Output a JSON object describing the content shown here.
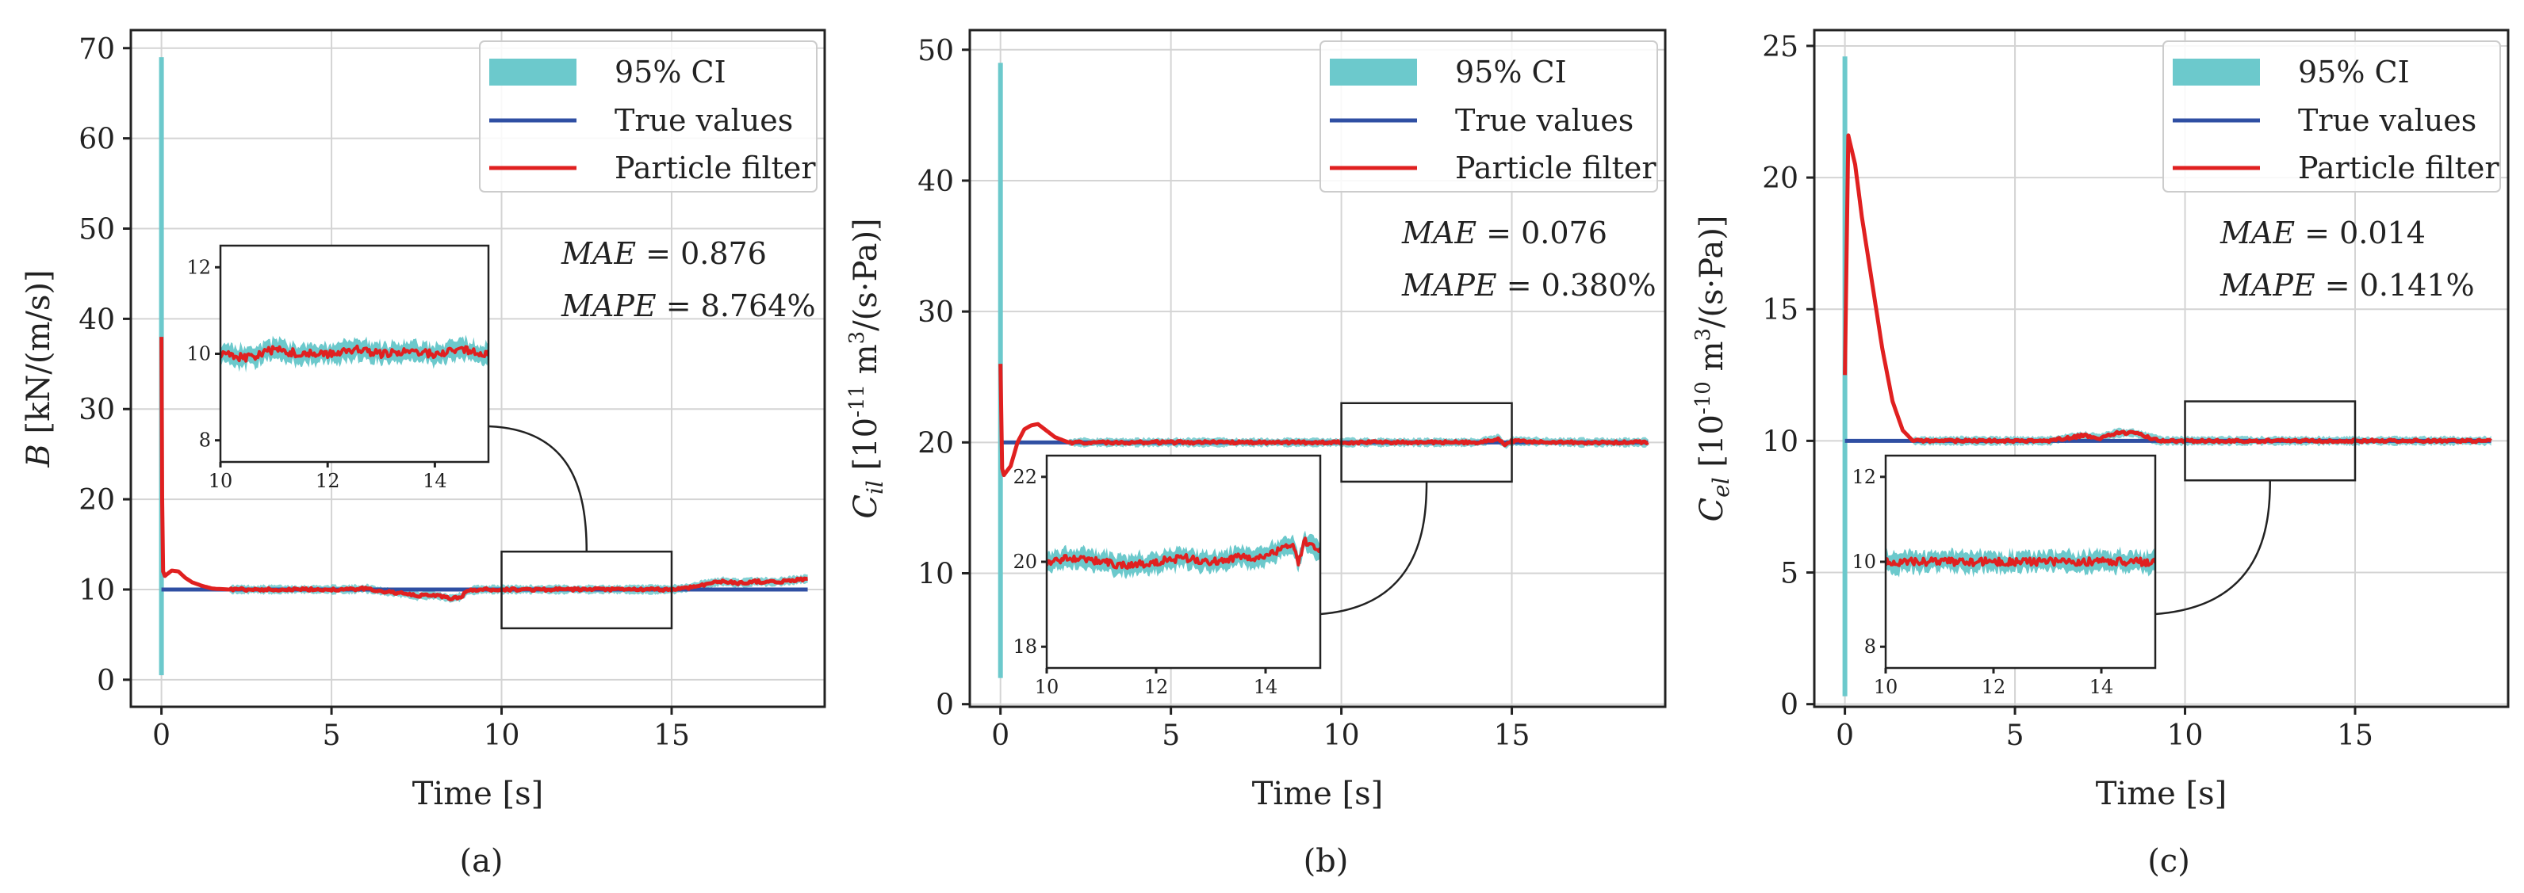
{
  "figure": {
    "captions": [
      "(a)",
      "(b)",
      "(c)"
    ]
  },
  "chart_data": [
    {
      "type": "line",
      "panel": "(a)",
      "xlabel": "Time [s]",
      "ylabel": "B [kN/(m/s)]",
      "ylabel_var": "B",
      "ylabel_sub": "",
      "ylabel_unit": " [kN/(m/s)]",
      "xlim": [
        -0.9,
        19.5
      ],
      "ylim": [
        -3,
        72
      ],
      "xticks": [
        0,
        5,
        10,
        15
      ],
      "yticks": [
        0,
        10,
        20,
        30,
        40,
        50,
        60,
        70
      ],
      "legend": {
        "location": "top-right",
        "entries": [
          "95% CI",
          "True values",
          "Particle filter"
        ]
      },
      "colors": {
        "ci": "#6cc9cc",
        "true": "#2f4fa3",
        "pf": "#e02020"
      },
      "metrics": {
        "mae_label": "MAE",
        "mae_value": "0.876",
        "mape_label": "MAPE",
        "mape_value": "8.764%"
      },
      "true_value": 10,
      "ci_spike": {
        "x": 0.0,
        "low": 0.5,
        "high": 69
      },
      "particle_filter": {
        "x": [
          0,
          0.02,
          0.05,
          0.1,
          0.2,
          0.3,
          0.5,
          0.7,
          0.9,
          1.2,
          1.5,
          2,
          3,
          4,
          5,
          5.5,
          6,
          6.5,
          7,
          7.5,
          8,
          8.5,
          8.8,
          9,
          9.3,
          10,
          11,
          12,
          13,
          14,
          15,
          15.5,
          16,
          16.5,
          17,
          17.5,
          18,
          18.5,
          19
        ],
        "y": [
          38,
          20,
          12,
          11.5,
          11.8,
          12.1,
          12.0,
          11.3,
          10.8,
          10.4,
          10.1,
          10.0,
          10.0,
          10.0,
          10.0,
          10.0,
          10.1,
          9.8,
          9.6,
          9.3,
          9.4,
          9.0,
          9.2,
          9.8,
          10.0,
          10.0,
          10.0,
          10.0,
          10.0,
          10.0,
          10.0,
          10.2,
          10.6,
          10.9,
          10.7,
          10.9,
          10.8,
          11.0,
          11.2
        ]
      },
      "zoom_box": {
        "x": [
          10,
          15
        ],
        "y": [
          5.7,
          14.2
        ]
      },
      "inset": {
        "xlim": [
          10,
          15
        ],
        "ylim": [
          7.5,
          12.5
        ],
        "xticks": [
          10,
          12,
          14
        ],
        "yticks": [
          8,
          10,
          12
        ],
        "level": 10,
        "x": [
          10,
          10.5,
          11,
          11.5,
          12,
          12.5,
          13,
          13.5,
          14,
          14.5,
          15
        ],
        "y": [
          10.0,
          9.9,
          10.1,
          10.0,
          10.0,
          10.1,
          10.0,
          10.05,
          10.0,
          10.1,
          10.0
        ]
      }
    },
    {
      "type": "line",
      "panel": "(b)",
      "xlabel": "Time [s]",
      "ylabel": "C_il [10^-11 m^3/(s·Pa)]",
      "ylabel_var": "C",
      "ylabel_sub": "il",
      "ylabel_unit": " [10",
      "ylabel_exp": "-11",
      "ylabel_unit2": " m",
      "ylabel_exp2": "3",
      "ylabel_unit3": "/(s·Pa)]",
      "xlim": [
        -0.9,
        19.5
      ],
      "ylim": [
        -0.2,
        51.5
      ],
      "xticks": [
        0,
        5,
        10,
        15
      ],
      "yticks": [
        0,
        10,
        20,
        30,
        40,
        50
      ],
      "legend": {
        "location": "top-right",
        "entries": [
          "95% CI",
          "True values",
          "Particle filter"
        ]
      },
      "colors": {
        "ci": "#6cc9cc",
        "true": "#2f4fa3",
        "pf": "#e02020"
      },
      "metrics": {
        "mae_label": "MAE",
        "mae_value": "0.076",
        "mape_label": "MAPE",
        "mape_value": "0.380%"
      },
      "true_value": 20,
      "ci_spike": {
        "x": 0.0,
        "low": 2,
        "high": 49
      },
      "particle_filter": {
        "x": [
          0,
          0.05,
          0.1,
          0.3,
          0.5,
          0.7,
          0.9,
          1.1,
          1.3,
          1.6,
          2,
          2.5,
          3,
          5,
          8,
          10,
          12,
          14,
          14.6,
          14.8,
          15,
          17,
          19
        ],
        "y": [
          26,
          18,
          17.5,
          18.2,
          20,
          21,
          21.3,
          21.4,
          21.0,
          20.4,
          20.0,
          20.0,
          20.0,
          20.0,
          20.0,
          20.0,
          20.0,
          20.0,
          20.3,
          19.8,
          20.1,
          20.0,
          20.0
        ]
      },
      "zoom_box": {
        "x": [
          10,
          15
        ],
        "y": [
          17,
          23
        ]
      },
      "inset": {
        "xlim": [
          10,
          15
        ],
        "ylim": [
          17.5,
          22.5
        ],
        "xticks": [
          10,
          12,
          14
        ],
        "yticks": [
          18,
          20,
          22
        ],
        "level": 20,
        "x": [
          10,
          10.5,
          11,
          11.5,
          12,
          12.5,
          13,
          13.5,
          14,
          14.3,
          14.5,
          14.6,
          14.7,
          15
        ],
        "y": [
          20.0,
          20.1,
          20.0,
          19.9,
          20.0,
          20.1,
          20.0,
          20.1,
          20.1,
          20.3,
          20.4,
          19.9,
          20.5,
          20.3
        ]
      }
    },
    {
      "type": "line",
      "panel": "(c)",
      "xlabel": "Time [s]",
      "ylabel": "C_el [10^-10 m^3/(s·Pa)]",
      "ylabel_var": "C",
      "ylabel_sub": "el",
      "ylabel_unit": " [10",
      "ylabel_exp": "-10",
      "ylabel_unit2": " m",
      "ylabel_exp2": "3",
      "ylabel_unit3": "/(s·Pa)]",
      "xlim": [
        -0.9,
        19.5
      ],
      "ylim": [
        -0.1,
        25.6
      ],
      "xticks": [
        0,
        5,
        10,
        15
      ],
      "yticks": [
        0,
        5,
        10,
        15,
        20,
        25
      ],
      "legend": {
        "location": "top-right",
        "entries": [
          "95% CI",
          "True values",
          "Particle filter"
        ]
      },
      "colors": {
        "ci": "#6cc9cc",
        "true": "#2f4fa3",
        "pf": "#e02020"
      },
      "metrics": {
        "mae_label": "MAE",
        "mae_value": "0.014",
        "mape_label": "MAPE",
        "mape_value": "0.141%"
      },
      "true_value": 10,
      "ci_spike": {
        "x": 0.0,
        "low": 0.3,
        "high": 24.6
      },
      "particle_filter": {
        "x": [
          0,
          0.1,
          0.3,
          0.5,
          0.8,
          1.1,
          1.4,
          1.7,
          2,
          3,
          4,
          5,
          6,
          6.5,
          7,
          7.5,
          8,
          8.5,
          9,
          9.3,
          10,
          12,
          14,
          16,
          18,
          19
        ],
        "y": [
          12.5,
          21.6,
          20.5,
          18.5,
          16.0,
          13.5,
          11.5,
          10.4,
          10.0,
          10.0,
          10.0,
          10.0,
          10.0,
          10.1,
          10.2,
          10.1,
          10.3,
          10.3,
          10.1,
          10.0,
          10.0,
          10.0,
          10.0,
          10.0,
          10.0,
          10.0
        ]
      },
      "zoom_box": {
        "x": [
          10,
          15
        ],
        "y": [
          8.5,
          11.5
        ]
      },
      "inset": {
        "xlim": [
          10,
          15
        ],
        "ylim": [
          7.5,
          12.5
        ],
        "xticks": [
          10,
          12,
          14
        ],
        "yticks": [
          8,
          10,
          12
        ],
        "level": 10,
        "x": [
          10,
          11,
          12,
          13,
          14,
          15
        ],
        "y": [
          10.0,
          10.0,
          10.0,
          10.0,
          10.0,
          10.0
        ]
      }
    }
  ]
}
